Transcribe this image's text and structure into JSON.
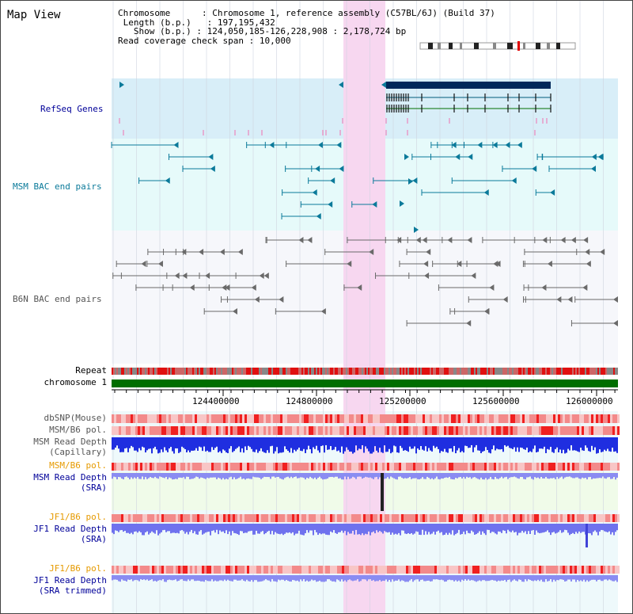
{
  "view_title": "Map View",
  "info": {
    "chromosome_key": "Chromosome",
    "chromosome_val": "Chromosome 1, reference assembly (C57BL/6J) (Build 37)",
    "length_key": "Length (b.p.)",
    "length_val": "197,195,432",
    "show_key": "Show (b.p.)",
    "show_val": "124,050,185-126,228,908 : 2,178,724 bp",
    "span_key": "Read coverage check span",
    "span_val": "10,000"
  },
  "tracks": {
    "refseq": "RefSeq Genes",
    "msm_bac": "MSM BAC end pairs",
    "b6n_bac": "B6N BAC end pairs",
    "repeat": "Repeat",
    "chromosome": "chromosome 1",
    "dbsnp": "dbSNP(Mouse)",
    "msm_b6_pol_1": "MSM/B6 pol.",
    "msm_read_depth_cap_1": "MSM Read Depth",
    "msm_read_depth_cap_2": "(Capillary)",
    "msm_b6_pol_2": "MSM/B6 pol.",
    "msm_read_depth_sra_1": "MSM Read Depth",
    "msm_read_depth_sra_2": "(SRA)",
    "jf1_b6_pol_1": "JF1/B6 pol.",
    "jf1_read_depth_sra_1": "JF1 Read Depth",
    "jf1_read_depth_sra_2": "(SRA)",
    "jf1_b6_pol_2": "JF1/B6 pol.",
    "jf1_read_depth_trim_1": "JF1 Read Depth",
    "jf1_read_depth_trim_2": "(SRA trimmed)"
  },
  "axis": {
    "ticks": [
      "124400000",
      "124800000",
      "125200000",
      "125600000",
      "126000000"
    ]
  },
  "colors": {
    "refseq_bg": "#d8eef8",
    "bac_bg": "#e6fafa",
    "b6n_bg": "#f6f7fb",
    "highlight": "#f7d7f0",
    "msm_label": "#0b7a9a",
    "navy_label": "#000099",
    "orange_label": "#e69a00",
    "chromosome_bar": "#006e00",
    "capillary_depth": "#1f2ee0",
    "sra_depth": "#8a8cf2"
  }
}
